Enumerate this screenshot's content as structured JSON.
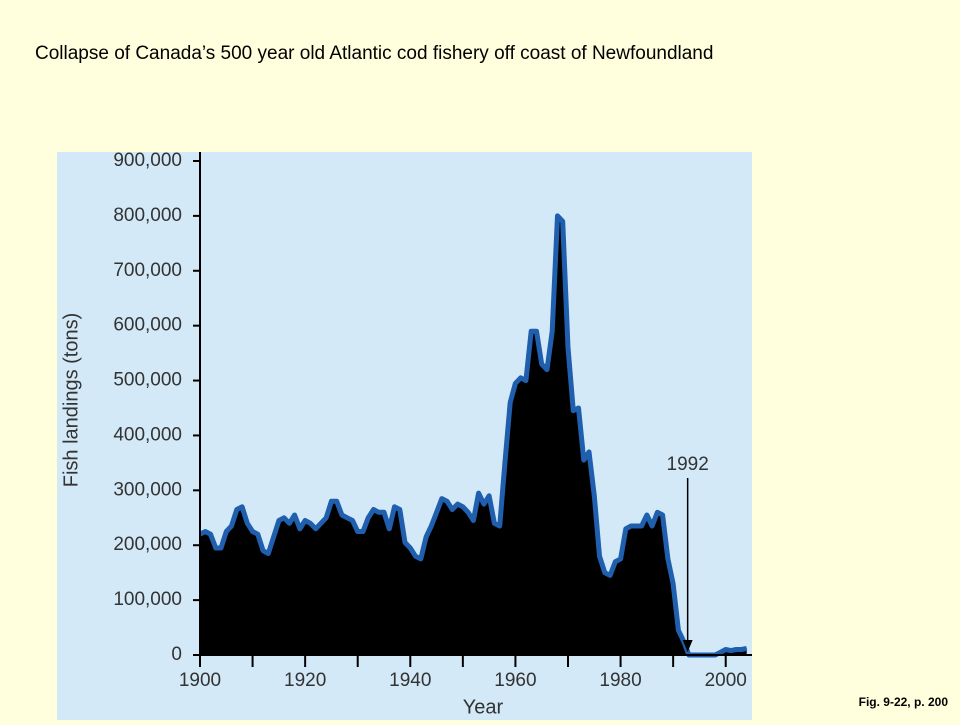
{
  "slide_title": "Collapse of Canada’s 500 year old Atlantic cod fishery off coast of Newfoundland",
  "footnote": "Fig. 9-22, p. 200",
  "chart_data": {
    "type": "area",
    "x_label": "Year",
    "y_label": "Fish landings (tons)",
    "x": [
      1900,
      1901,
      1902,
      1903,
      1904,
      1905,
      1906,
      1907,
      1908,
      1909,
      1910,
      1911,
      1912,
      1913,
      1914,
      1915,
      1916,
      1917,
      1918,
      1919,
      1920,
      1921,
      1922,
      1923,
      1924,
      1925,
      1926,
      1927,
      1928,
      1929,
      1930,
      1931,
      1932,
      1933,
      1934,
      1935,
      1936,
      1937,
      1938,
      1939,
      1940,
      1941,
      1942,
      1943,
      1944,
      1945,
      1946,
      1947,
      1948,
      1949,
      1950,
      1951,
      1952,
      1953,
      1954,
      1955,
      1956,
      1957,
      1958,
      1959,
      1960,
      1961,
      1962,
      1963,
      1964,
      1965,
      1966,
      1967,
      1968,
      1969,
      1970,
      1971,
      1972,
      1973,
      1974,
      1975,
      1976,
      1977,
      1978,
      1979,
      1980,
      1981,
      1982,
      1983,
      1984,
      1985,
      1986,
      1987,
      1988,
      1989,
      1990,
      1991,
      1992,
      1993,
      1994,
      1995,
      1996,
      1997,
      1998,
      1999,
      2000,
      2001,
      2002,
      2003,
      2004
    ],
    "series": [
      {
        "name": "Fish landings",
        "color": "#1f5fae",
        "fill": "#000000",
        "values": [
          220000,
          225000,
          220000,
          195000,
          195000,
          225000,
          235000,
          265000,
          270000,
          240000,
          225000,
          220000,
          190000,
          185000,
          215000,
          245000,
          250000,
          240000,
          255000,
          230000,
          245000,
          240000,
          230000,
          240000,
          250000,
          280000,
          280000,
          255000,
          250000,
          245000,
          225000,
          225000,
          250000,
          265000,
          260000,
          260000,
          230000,
          270000,
          265000,
          205000,
          195000,
          180000,
          175000,
          215000,
          235000,
          260000,
          285000,
          280000,
          265000,
          275000,
          270000,
          260000,
          245000,
          295000,
          275000,
          290000,
          240000,
          235000,
          350000,
          460000,
          495000,
          505000,
          500000,
          590000,
          590000,
          530000,
          520000,
          590000,
          800000,
          790000,
          560000,
          445000,
          450000,
          355000,
          370000,
          290000,
          180000,
          150000,
          145000,
          170000,
          175000,
          230000,
          235000,
          235000,
          235000,
          255000,
          235000,
          260000,
          255000,
          175000,
          130000,
          45000,
          25000,
          0,
          0,
          0,
          0,
          0,
          0,
          5000,
          10000,
          8000,
          10000,
          10000,
          12000
        ]
      }
    ],
    "xlim": [
      1900,
      2005
    ],
    "xticks": [
      1900,
      1920,
      1940,
      1960,
      1980,
      2000
    ],
    "xminor_ticks": [
      1910,
      1930,
      1950,
      1970,
      1990
    ],
    "ylim": [
      0,
      900000
    ],
    "yticks": [
      0,
      {
        "value": 100000,
        "label": "100,000"
      },
      {
        "value": 200000,
        "label": "200,000"
      },
      {
        "value": 300000,
        "label": "300,000"
      },
      {
        "value": 400000,
        "label": "400,000"
      },
      {
        "value": 500000,
        "label": "500,000"
      },
      {
        "value": 600000,
        "label": "600,000"
      },
      {
        "value": 700000,
        "label": "700,000"
      },
      {
        "value": 800000,
        "label": "800,000"
      },
      {
        "value": 900000,
        "label": "900,000"
      }
    ],
    "annotations": [
      {
        "text": "1992",
        "x": 1992
      }
    ]
  }
}
